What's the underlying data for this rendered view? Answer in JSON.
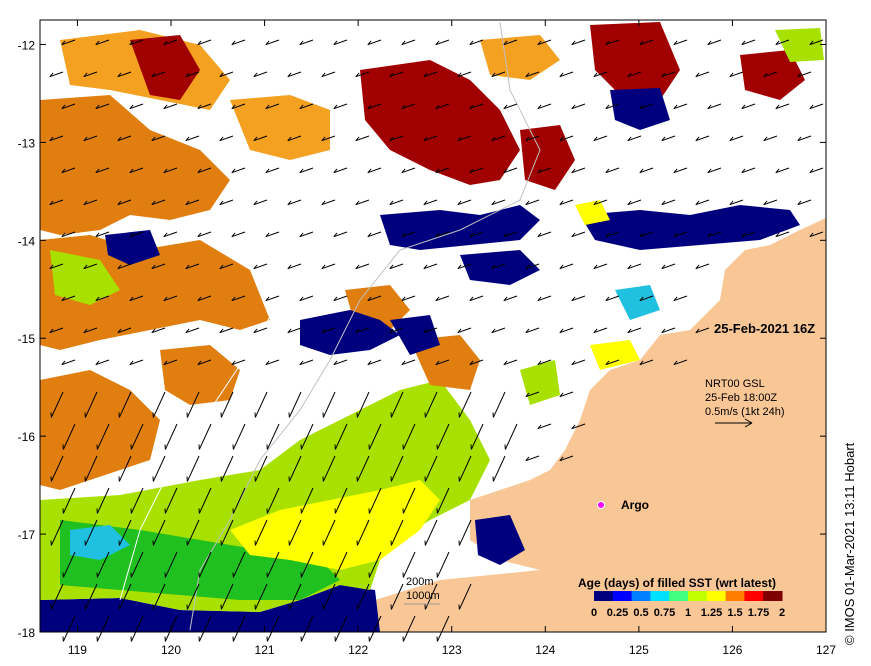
{
  "map": {
    "title_timestamp": "25-Feb-2021 16Z",
    "lon_ticks": [
      "119",
      "120",
      "121",
      "122",
      "123",
      "124",
      "125",
      "126",
      "127"
    ],
    "lat_ticks": [
      "-12",
      "-13",
      "-14",
      "-15",
      "-16",
      "-17",
      "-18"
    ],
    "lon_range": [
      118.6,
      127.0
    ],
    "lat_range": [
      -18.0,
      -11.75
    ],
    "current_legend": {
      "line1": "NRT00 GSL",
      "line2": "25-Feb 18:00Z",
      "line3": "0.5m/s (1kt 24h)"
    },
    "argo_label": "Argo",
    "contours_label_1": "200m",
    "contours_label_2": "1000m",
    "colorbar": {
      "title": "Age (days) of filled SST (wrt latest)",
      "labels": [
        "0",
        "0.25",
        "0.5",
        "0.75",
        "1",
        "1.25",
        "1.5",
        "1.75",
        "2"
      ],
      "colors": [
        "#00007f",
        "#0000ff",
        "#0080ff",
        "#00e0ff",
        "#40ff80",
        "#c0ff00",
        "#ffff00",
        "#ff8000",
        "#ff0000",
        "#7f0000"
      ]
    },
    "credit": "© IMOS 01-Mar-2021 13:11 Hobart",
    "colors": {
      "land": "#f9c696",
      "navy": "#00007f",
      "dark_red": "#a00000",
      "orange": "#e07e10",
      "light_orange": "#f4a020",
      "lime": "#a8e000",
      "yellow": "#ffff00",
      "green": "#20c020",
      "cyan": "#20c0e0"
    }
  }
}
